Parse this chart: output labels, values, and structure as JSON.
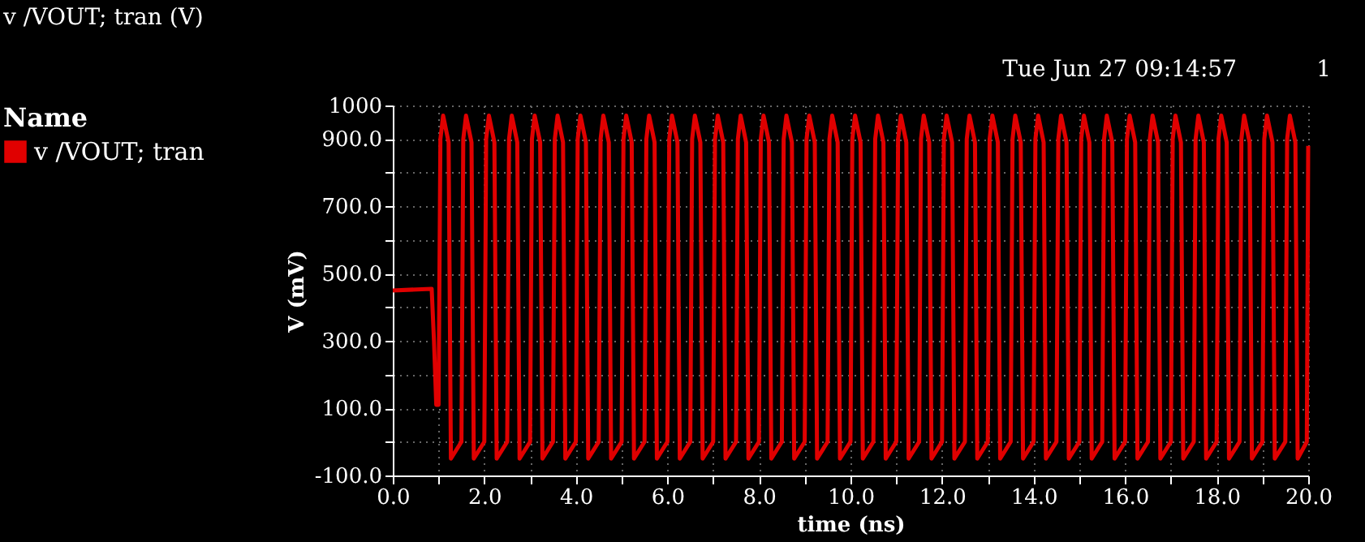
{
  "chart_data": {
    "type": "line",
    "title": "v /VOUT; tran (V)",
    "xlabel": "time (ns)",
    "ylabel": "V (mV)",
    "legend_title": "Name",
    "annotations": [
      "Tue Jun 27 09:14:57",
      "1"
    ],
    "xlim": [
      0,
      20
    ],
    "ylim": [
      -100,
      1000
    ],
    "xticks": [
      {
        "value": 0,
        "label": "0.0"
      },
      {
        "value": 1,
        "label": null
      },
      {
        "value": 2,
        "label": "2.0"
      },
      {
        "value": 3,
        "label": null
      },
      {
        "value": 4,
        "label": "4.0"
      },
      {
        "value": 5,
        "label": null
      },
      {
        "value": 6,
        "label": "6.0"
      },
      {
        "value": 7,
        "label": null
      },
      {
        "value": 8,
        "label": "8.0"
      },
      {
        "value": 9,
        "label": null
      },
      {
        "value": 10,
        "label": "10.0"
      },
      {
        "value": 11,
        "label": null
      },
      {
        "value": 12,
        "label": "12.0"
      },
      {
        "value": 13,
        "label": null
      },
      {
        "value": 14,
        "label": "14.0"
      },
      {
        "value": 15,
        "label": null
      },
      {
        "value": 16,
        "label": "16.0"
      },
      {
        "value": 17,
        "label": null
      },
      {
        "value": 18,
        "label": "18.0"
      },
      {
        "value": 19,
        "label": null
      },
      {
        "value": 20,
        "label": "20.0"
      }
    ],
    "yticks": [
      {
        "value": -100,
        "label": "-100.0"
      },
      {
        "value": 0,
        "label": null
      },
      {
        "value": 100,
        "label": "100.0"
      },
      {
        "value": 200,
        "label": null
      },
      {
        "value": 300,
        "label": "300.0"
      },
      {
        "value": 400,
        "label": null
      },
      {
        "value": 500,
        "label": "500.0"
      },
      {
        "value": 600,
        "label": null
      },
      {
        "value": 700,
        "label": "700.0"
      },
      {
        "value": 800,
        "label": null
      },
      {
        "value": 900,
        "label": "900.0"
      },
      1000
    ],
    "grid": true,
    "legend": "left",
    "marker": "none",
    "line_style": "solid",
    "series": [
      {
        "name": "v /VOUT; tran",
        "color": "#e00000",
        "x": [
          0,
          0.85,
          0.9,
          0.95,
          1.0,
          1.04,
          1.1,
          1.22,
          1.27,
          1.5,
          1.54,
          1.6,
          1.72,
          1.77,
          2.0,
          2.04,
          2.1,
          2.22,
          2.27,
          2.5,
          2.54,
          2.6,
          2.72,
          2.77,
          3.0,
          3.04,
          3.1,
          3.22,
          3.27,
          3.5,
          3.54,
          3.6,
          3.72,
          3.77,
          4.0,
          4.04,
          4.1,
          4.22,
          4.27,
          4.5,
          4.54,
          4.6,
          4.72,
          4.77,
          5.0,
          5.04,
          5.1,
          5.22,
          5.27,
          5.5,
          5.54,
          5.6,
          5.72,
          5.77,
          6.0,
          6.04,
          6.1,
          6.22,
          6.27,
          6.5,
          6.54,
          6.6,
          6.72,
          6.77,
          7.0,
          7.04,
          7.1,
          7.22,
          7.27,
          7.5,
          7.54,
          7.6,
          7.72,
          7.77,
          8.0,
          8.04,
          8.1,
          8.22,
          8.27,
          8.5,
          8.54,
          8.6,
          8.72,
          8.77,
          9.0,
          9.04,
          9.1,
          9.22,
          9.27,
          9.5,
          9.54,
          9.6,
          9.72,
          9.77,
          10.0,
          10.04,
          10.1,
          10.22,
          10.27,
          10.5,
          10.54,
          10.6,
          10.72,
          10.77,
          11.0,
          11.04,
          11.1,
          11.22,
          11.27,
          11.5,
          11.54,
          11.6,
          11.72,
          11.77,
          12.0,
          12.04,
          12.1,
          12.22,
          12.27,
          12.5,
          12.54,
          12.6,
          12.72,
          12.77,
          13.0,
          13.04,
          13.1,
          13.22,
          13.27,
          13.5,
          13.54,
          13.6,
          13.72,
          13.77,
          14.0,
          14.04,
          14.1,
          14.22,
          14.27,
          14.5,
          14.54,
          14.6,
          14.72,
          14.77,
          15.0,
          15.04,
          15.1,
          15.22,
          15.27,
          15.5,
          15.54,
          15.6,
          15.72,
          15.77,
          16.0,
          16.04,
          16.1,
          16.22,
          16.27,
          16.5,
          16.54,
          16.6,
          16.72,
          16.77,
          17.0,
          17.04,
          17.1,
          17.22,
          17.27,
          17.5,
          17.54,
          17.6,
          17.72,
          17.77,
          18.0,
          18.04,
          18.1,
          18.22,
          18.27,
          18.5,
          18.54,
          18.6,
          18.72,
          18.77,
          19.0,
          19.04,
          19.1,
          19.22,
          19.27,
          19.5,
          19.54,
          19.6,
          19.72,
          19.77,
          19.97,
          20.0
        ],
        "values": [
          450,
          455,
          300,
          110,
          110,
          900,
          970,
          890,
          -50,
          0,
          900,
          970,
          890,
          -50,
          0,
          900,
          970,
          890,
          -50,
          0,
          900,
          970,
          890,
          -50,
          0,
          900,
          970,
          890,
          -50,
          0,
          900,
          970,
          890,
          -50,
          0,
          900,
          970,
          890,
          -50,
          0,
          900,
          970,
          890,
          -50,
          0,
          900,
          970,
          890,
          -50,
          0,
          900,
          970,
          890,
          -50,
          0,
          900,
          970,
          890,
          -50,
          0,
          900,
          970,
          890,
          -50,
          0,
          900,
          970,
          890,
          -50,
          0,
          900,
          970,
          890,
          -50,
          0,
          900,
          970,
          890,
          -50,
          0,
          900,
          970,
          890,
          -50,
          0,
          900,
          970,
          890,
          -50,
          0,
          900,
          970,
          890,
          -50,
          0,
          900,
          970,
          890,
          -50,
          0,
          900,
          970,
          890,
          -50,
          0,
          900,
          970,
          890,
          -50,
          0,
          900,
          970,
          890,
          -50,
          0,
          900,
          970,
          890,
          -50,
          0,
          900,
          970,
          890,
          -50,
          0,
          900,
          970,
          890,
          -50,
          0,
          900,
          970,
          890,
          -50,
          0,
          900,
          970,
          890,
          -50,
          0,
          900,
          970,
          890,
          -50,
          0,
          900,
          970,
          890,
          -50,
          0,
          900,
          970,
          890,
          -50,
          0,
          900,
          970,
          890,
          -50,
          0,
          900,
          970,
          890,
          -50,
          0,
          900,
          970,
          890,
          -50,
          0,
          900,
          970,
          890,
          -50,
          0,
          900,
          970,
          890,
          -50,
          0,
          900,
          970,
          890,
          -50,
          0,
          900,
          970,
          890,
          -50,
          0,
          900,
          970,
          890,
          -50,
          0,
          880
        ]
      }
    ]
  }
}
